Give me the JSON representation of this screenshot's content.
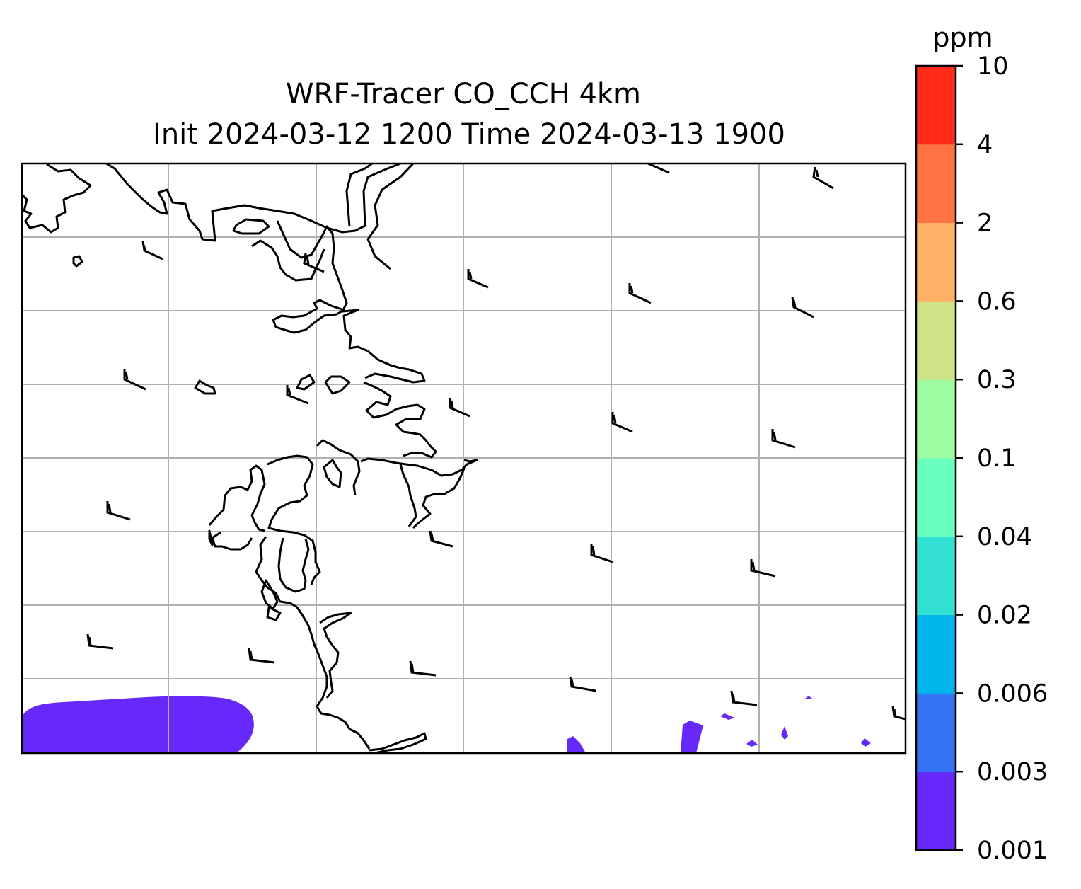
{
  "title": {
    "line1": "WRF-Tracer CO_CCH 4km",
    "line2": "Init 2024-03-12 1200 Time 2024-03-13 1900"
  },
  "colorbar": {
    "unit": "ppm",
    "levels": [
      "0.001",
      "0.003",
      "0.006",
      "0.02",
      "0.04",
      "0.1",
      "0.3",
      "0.6",
      "2",
      "4",
      "10"
    ],
    "colors": [
      "#6629fa",
      "#3473f4",
      "#02b4ec",
      "#33e0d4",
      "#6afdc0",
      "#9cfda0",
      "#cfe387",
      "#feb266",
      "#ff7342",
      "#ff2c19"
    ]
  },
  "map": {
    "background": "#ffffff",
    "gridline_color": "#b0b0b0",
    "coastline_color": "#000000",
    "tracer_color": "#6629fa",
    "features": [
      "coastline",
      "lat-lon gridlines",
      "wind barbs",
      "tracer concentration field"
    ]
  }
}
